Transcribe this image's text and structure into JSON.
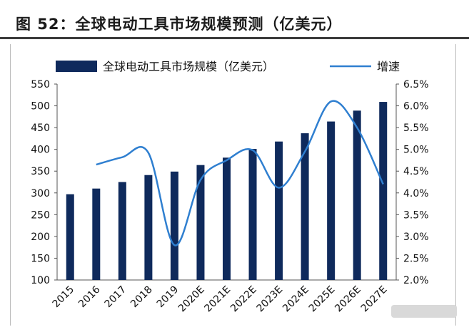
{
  "title": "图 52：全球电动工具市场规模预测（亿美元）",
  "colors": {
    "bar": "#0f2a5c",
    "line": "#2f7fd0"
  },
  "chart_data": {
    "type": "bar",
    "categories": [
      "2015",
      "2016",
      "2017",
      "2018",
      "2019",
      "2020E",
      "2021E",
      "2022E",
      "2023E",
      "2024E",
      "2025E",
      "2026E",
      "2027E"
    ],
    "series": [
      {
        "name": "全球电动工具市场规模（亿美元）",
        "type": "bar",
        "axis": "left",
        "values": [
          297,
          310,
          325,
          341,
          349,
          364,
          381,
          401,
          418,
          437,
          464,
          489,
          509
        ]
      },
      {
        "name": "增速",
        "type": "line",
        "axis": "right",
        "values": [
          null,
          4.65,
          4.82,
          4.92,
          2.8,
          4.3,
          4.75,
          4.98,
          4.12,
          4.95,
          6.1,
          5.5,
          4.2
        ]
      }
    ],
    "ylim": [
      100,
      550
    ],
    "yticks": [
      "100",
      "150",
      "200",
      "250",
      "300",
      "350",
      "400",
      "450",
      "500",
      "550"
    ],
    "y2lim": [
      2.0,
      6.5
    ],
    "y2ticks": [
      "2.0%",
      "2.5%",
      "3.0%",
      "3.5%",
      "4.0%",
      "4.5%",
      "5.0%",
      "5.5%",
      "6.0%",
      "6.5%"
    ],
    "legend_position": "top"
  }
}
